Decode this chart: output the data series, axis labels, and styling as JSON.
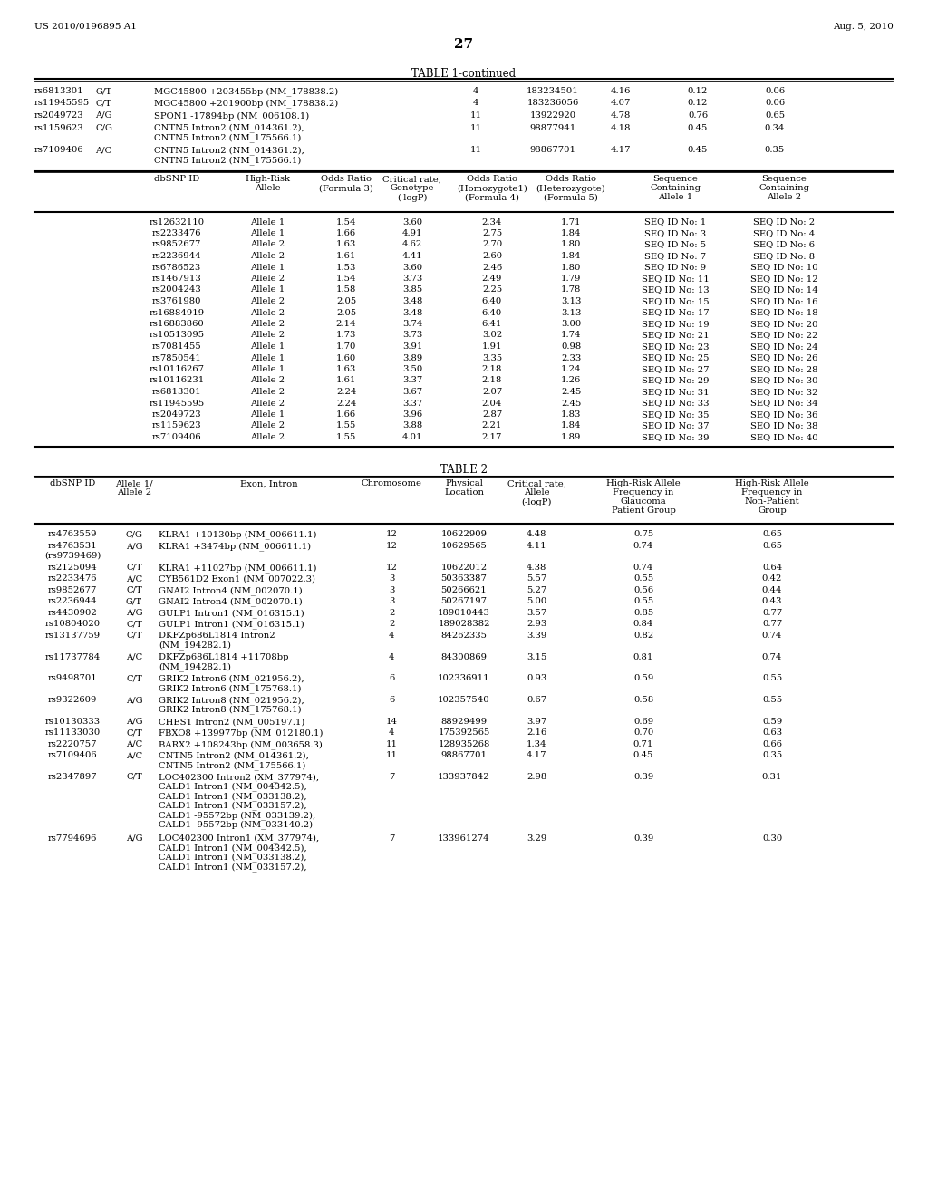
{
  "header_left": "US 2010/0196895 A1",
  "header_right": "Aug. 5, 2010",
  "page_num": "27",
  "table1_continued_title": "TABLE 1-continued",
  "table1_top_rows": [
    [
      "rs6813301",
      "G/T",
      "MGC45800 +203455bp (NM_178838.2)",
      "4",
      "183234501",
      "4.16",
      "0.12",
      "0.06"
    ],
    [
      "rs11945595",
      "C/T",
      "MGC45800 +201900bp (NM_178838.2)",
      "4",
      "183236056",
      "4.07",
      "0.12",
      "0.06"
    ],
    [
      "rs2049723",
      "A/G",
      "SPON1 -17894bp (NM_006108.1)",
      "11",
      "13922920",
      "4.78",
      "0.76",
      "0.65"
    ],
    [
      "rs1159623",
      "C/G",
      "CNTN5 Intron2 (NM_014361.2),\nCNTN5 Intron2 (NM_175566.1)",
      "11",
      "98877941",
      "4.18",
      "0.45",
      "0.34"
    ],
    [
      "rs7109406",
      "A/C",
      "CNTN5 Intron2 (NM_014361.2),\nCNTN5 Intron2 (NM_175566.1)",
      "11",
      "98867701",
      "4.17",
      "0.45",
      "0.35"
    ]
  ],
  "table1_lower_headers": [
    "dbSNP ID",
    "High-Risk\nAllele",
    "Odds Ratio\n(Formula 3)",
    "Critical rate,\nGenotype\n(-logP)",
    "Odds Ratio\n(Homozygote1)\n(Formula 4)",
    "Odds Ratio\n(Heterozygote)\n(Formula 5)",
    "Sequence\nContaining\nAllele 1",
    "Sequence\nContaining\nAllele 2"
  ],
  "table1_lower_rows": [
    [
      "rs12632110",
      "Allele 1",
      "1.54",
      "3.60",
      "2.34",
      "1.71",
      "SEQ ID No: 1",
      "SEQ ID No: 2"
    ],
    [
      "rs2233476",
      "Allele 1",
      "1.66",
      "4.91",
      "2.75",
      "1.84",
      "SEQ ID No: 3",
      "SEQ ID No: 4"
    ],
    [
      "rs9852677",
      "Allele 2",
      "1.63",
      "4.62",
      "2.70",
      "1.80",
      "SEQ ID No: 5",
      "SEQ ID No: 6"
    ],
    [
      "rs2236944",
      "Allele 2",
      "1.61",
      "4.41",
      "2.60",
      "1.84",
      "SEQ ID No: 7",
      "SEQ ID No: 8"
    ],
    [
      "rs6786523",
      "Allele 1",
      "1.53",
      "3.60",
      "2.46",
      "1.80",
      "SEQ ID No: 9",
      "SEQ ID No: 10"
    ],
    [
      "rs1467913",
      "Allele 2",
      "1.54",
      "3.73",
      "2.49",
      "1.79",
      "SEQ ID No: 11",
      "SEQ ID No: 12"
    ],
    [
      "rs2004243",
      "Allele 1",
      "1.58",
      "3.85",
      "2.25",
      "1.78",
      "SEQ ID No: 13",
      "SEQ ID No: 14"
    ],
    [
      "rs3761980",
      "Allele 2",
      "2.05",
      "3.48",
      "6.40",
      "3.13",
      "SEQ ID No: 15",
      "SEQ ID No: 16"
    ],
    [
      "rs16884919",
      "Allele 2",
      "2.05",
      "3.48",
      "6.40",
      "3.13",
      "SEQ ID No: 17",
      "SEQ ID No: 18"
    ],
    [
      "rs16883860",
      "Allele 2",
      "2.14",
      "3.74",
      "6.41",
      "3.00",
      "SEQ ID No: 19",
      "SEQ ID No: 20"
    ],
    [
      "rs10513095",
      "Allele 2",
      "1.73",
      "3.73",
      "3.02",
      "1.74",
      "SEQ ID No: 21",
      "SEQ ID No: 22"
    ],
    [
      "rs7081455",
      "Allele 1",
      "1.70",
      "3.91",
      "1.91",
      "0.98",
      "SEQ ID No: 23",
      "SEQ ID No: 24"
    ],
    [
      "rs7850541",
      "Allele 1",
      "1.60",
      "3.89",
      "3.35",
      "2.33",
      "SEQ ID No: 25",
      "SEQ ID No: 26"
    ],
    [
      "rs10116267",
      "Allele 1",
      "1.63",
      "3.50",
      "2.18",
      "1.24",
      "SEQ ID No: 27",
      "SEQ ID No: 28"
    ],
    [
      "rs10116231",
      "Allele 2",
      "1.61",
      "3.37",
      "2.18",
      "1.26",
      "SEQ ID No: 29",
      "SEQ ID No: 30"
    ],
    [
      "rs6813301",
      "Allele 2",
      "2.24",
      "3.67",
      "2.07",
      "2.45",
      "SEQ ID No: 31",
      "SEQ ID No: 32"
    ],
    [
      "rs11945595",
      "Allele 2",
      "2.24",
      "3.37",
      "2.04",
      "2.45",
      "SEQ ID No: 33",
      "SEQ ID No: 34"
    ],
    [
      "rs2049723",
      "Allele 1",
      "1.66",
      "3.96",
      "2.87",
      "1.83",
      "SEQ ID No: 35",
      "SEQ ID No: 36"
    ],
    [
      "rs1159623",
      "Allele 2",
      "1.55",
      "3.88",
      "2.21",
      "1.84",
      "SEQ ID No: 37",
      "SEQ ID No: 38"
    ],
    [
      "rs7109406",
      "Allele 2",
      "1.55",
      "4.01",
      "2.17",
      "1.89",
      "SEQ ID No: 39",
      "SEQ ID No: 40"
    ]
  ],
  "table2_title": "TABLE 2",
  "table2_headers": [
    "dbSNP ID",
    "Allele 1/\nAllele 2",
    "Exon, Intron",
    "Chromosome",
    "Physical\nLocation",
    "Critical rate,\nAllele\n(-logP)",
    "High-Risk Allele\nFrequency in\nGlaucoma\nPatient Group",
    "High-Risk Allele\nFrequency in\nNon-Patient\nGroup"
  ],
  "table2_rows": [
    [
      "rs4763559",
      "C/G",
      "KLRA1 +10130bp (NM_006611.1)",
      "12",
      "10622909",
      "4.48",
      "0.75",
      "0.65"
    ],
    [
      "rs4763531\n(rs9739469)",
      "A/G",
      "KLRA1 +3474bp (NM_006611.1)",
      "12",
      "10629565",
      "4.11",
      "0.74",
      "0.65"
    ],
    [
      "rs2125094",
      "C/T",
      "KLRA1 +11027bp (NM_006611.1)",
      "12",
      "10622012",
      "4.38",
      "0.74",
      "0.64"
    ],
    [
      "rs2233476",
      "A/C",
      "CYB561D2 Exon1 (NM_007022.3)",
      "3",
      "50363387",
      "5.57",
      "0.55",
      "0.42"
    ],
    [
      "rs9852677",
      "C/T",
      "GNAI2 Intron4 (NM_002070.1)",
      "3",
      "50266621",
      "5.27",
      "0.56",
      "0.44"
    ],
    [
      "rs2236944",
      "G/T",
      "GNAI2 Intron4 (NM_002070.1)",
      "3",
      "50267197",
      "5.00",
      "0.55",
      "0.43"
    ],
    [
      "rs4430902",
      "A/G",
      "GULP1 Intron1 (NM_016315.1)",
      "2",
      "189010443",
      "3.57",
      "0.85",
      "0.77"
    ],
    [
      "rs10804020",
      "C/T",
      "GULP1 Intron1 (NM_016315.1)",
      "2",
      "189028382",
      "2.93",
      "0.84",
      "0.77"
    ],
    [
      "rs13137759",
      "C/T",
      "DKFZp686L1814 Intron2\n(NM_194282.1)",
      "4",
      "84262335",
      "3.39",
      "0.82",
      "0.74"
    ],
    [
      "rs11737784",
      "A/C",
      "DKFZp686L1814 +11708bp\n(NM_194282.1)",
      "4",
      "84300869",
      "3.15",
      "0.81",
      "0.74"
    ],
    [
      "rs9498701",
      "C/T",
      "GRIK2 Intron6 (NM_021956.2),\nGRIK2 Intron6 (NM_175768.1)",
      "6",
      "102336911",
      "0.93",
      "0.59",
      "0.55"
    ],
    [
      "rs9322609",
      "A/G",
      "GRIK2 Intron8 (NM_021956.2),\nGRIK2 Intron8 (NM_175768.1)",
      "6",
      "102357540",
      "0.67",
      "0.58",
      "0.55"
    ],
    [
      "rs10130333",
      "A/G",
      "CHES1 Intron2 (NM_005197.1)",
      "14",
      "88929499",
      "3.97",
      "0.69",
      "0.59"
    ],
    [
      "rs11133030",
      "C/T",
      "FBXO8 +139977bp (NM_012180.1)",
      "4",
      "175392565",
      "2.16",
      "0.70",
      "0.63"
    ],
    [
      "rs2220757",
      "A/C",
      "BARX2 +108243bp (NM_003658.3)",
      "11",
      "128935268",
      "1.34",
      "0.71",
      "0.66"
    ],
    [
      "rs7109406",
      "A/C",
      "CNTN5 Intron2 (NM_014361.2),\nCNTN5 Intron2 (NM_175566.1)",
      "11",
      "98867701",
      "4.17",
      "0.45",
      "0.35"
    ],
    [
      "rs2347897",
      "C/T",
      "LOC402300 Intron2 (XM_377974),\nCALD1 Intron1 (NM_004342.5),\nCALD1 Intron1 (NM_033138.2),\nCALD1 Intron1 (NM_033157.2),\nCALD1 -95572bp (NM_033139.2),\nCALD1 -95572bp (NM_033140.2)",
      "7",
      "133937842",
      "2.98",
      "0.39",
      "0.31"
    ],
    [
      "rs7794696",
      "A/G",
      "LOC402300 Intron1 (XM_377974),\nCALD1 Intron1 (NM_004342.5),\nCALD1 Intron1 (NM_033138.2),\nCALD1 Intron1 (NM_033157.2),",
      "7",
      "133961274",
      "3.29",
      "0.39",
      "0.30"
    ]
  ]
}
